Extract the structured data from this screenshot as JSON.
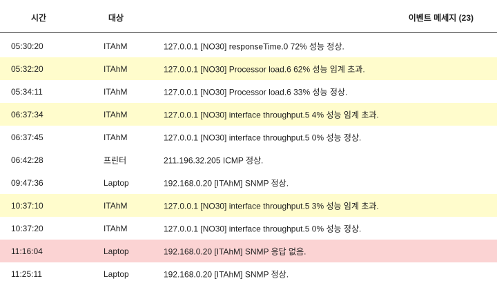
{
  "header": {
    "time_label": "시간",
    "target_label": "대상",
    "message_label": "이벤트 메세지 (23)"
  },
  "status_colors": {
    "normal": "#ffffff",
    "warn": "#fffccc",
    "error": "#fbd3d3"
  },
  "rows": [
    {
      "time": "05:30:20",
      "target": "ITAhM",
      "message": "127.0.0.1 [NO30] responseTime.0 72% 성능 정상.",
      "status": "normal"
    },
    {
      "time": "05:32:20",
      "target": "ITAhM",
      "message": "127.0.0.1 [NO30] Processor load.6 62% 성능 임계 초과.",
      "status": "warn"
    },
    {
      "time": "05:34:11",
      "target": "ITAhM",
      "message": "127.0.0.1 [NO30] Processor load.6 33% 성능 정상.",
      "status": "normal"
    },
    {
      "time": "06:37:34",
      "target": "ITAhM",
      "message": "127.0.0.1 [NO30] interface throughput.5 4% 성능 임계 초과.",
      "status": "warn"
    },
    {
      "time": "06:37:45",
      "target": "ITAhM",
      "message": "127.0.0.1 [NO30] interface throughput.5 0% 성능 정상.",
      "status": "normal"
    },
    {
      "time": "06:42:28",
      "target": "프린터",
      "message": "211.196.32.205 ICMP 정상.",
      "status": "normal"
    },
    {
      "time": "09:47:36",
      "target": "Laptop",
      "message": "192.168.0.20 [ITAhM] SNMP 정상.",
      "status": "normal"
    },
    {
      "time": "10:37:10",
      "target": "ITAhM",
      "message": "127.0.0.1 [NO30] interface throughput.5 3% 성능 임계 초과.",
      "status": "warn"
    },
    {
      "time": "10:37:20",
      "target": "ITAhM",
      "message": "127.0.0.1 [NO30] interface throughput.5 0% 성능 정상.",
      "status": "normal"
    },
    {
      "time": "11:16:04",
      "target": "Laptop",
      "message": "192.168.0.20 [ITAhM] SNMP 응답 없음.",
      "status": "error"
    },
    {
      "time": "11:25:11",
      "target": "Laptop",
      "message": "192.168.0.20 [ITAhM] SNMP 정상.",
      "status": "normal"
    }
  ]
}
